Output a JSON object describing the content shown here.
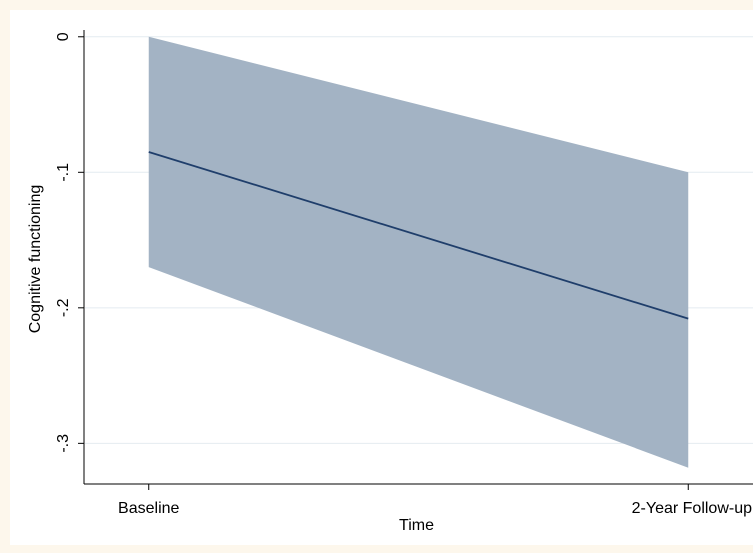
{
  "chart_data": {
    "type": "area",
    "title": "",
    "xlabel": "Time",
    "ylabel": "Cognitive functioning",
    "categories": [
      "Baseline",
      "2-Year Follow-up"
    ],
    "x": [
      0,
      1
    ],
    "xlim": [
      -0.12,
      1.12
    ],
    "ylim": [
      -0.33,
      0.005
    ],
    "yticks": [
      0,
      -0.1,
      -0.2,
      -0.3
    ],
    "ytick_labels": [
      "0",
      "-.1",
      "-.2",
      "-.3"
    ],
    "grid": true,
    "legend": "none",
    "series": [
      {
        "type": "line",
        "values": [
          -0.085,
          -0.208
        ],
        "color": "#1f3e6b"
      },
      {
        "type": "band",
        "lower": [
          -0.17,
          -0.318
        ],
        "upper": [
          0.0,
          -0.1
        ],
        "color": "#a3b3c4"
      }
    ],
    "colors": {
      "background": "#fdf7ec",
      "plot_background": "#ffffff",
      "grid": "#e4ebf0",
      "band": "#a3b3c4",
      "line": "#1f3e6b",
      "axis": "#000000"
    }
  }
}
